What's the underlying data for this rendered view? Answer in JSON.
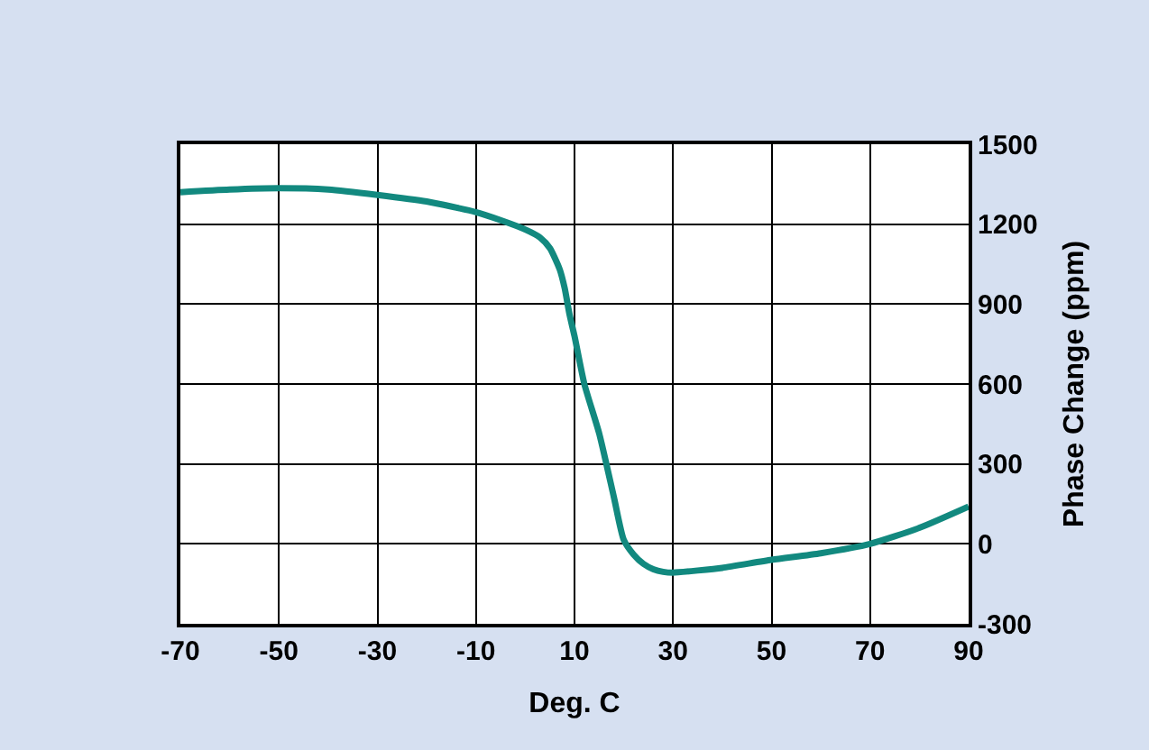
{
  "chart_data": {
    "type": "line",
    "xlabel": "Deg. C",
    "ylabel": "Phase Change (ppm)",
    "x": [
      -70,
      -60,
      -50,
      -40,
      -30,
      -20,
      -10,
      -5,
      0,
      3,
      5,
      7,
      8,
      9,
      10,
      12,
      15,
      18,
      20,
      22,
      24,
      26,
      28,
      30,
      35,
      40,
      50,
      60,
      70,
      80,
      90
    ],
    "series": [
      {
        "color": "#12897f",
        "values": [
          1320,
          1330,
          1335,
          1330,
          1310,
          1285,
          1245,
          1215,
          1180,
          1150,
          1110,
          1030,
          960,
          860,
          780,
          600,
          415,
          175,
          15,
          -40,
          -75,
          -95,
          -105,
          -108,
          -100,
          -90,
          -60,
          -35,
          0,
          60,
          140
        ]
      }
    ],
    "xlim": [
      -70,
      90
    ],
    "xticks": [
      -70,
      -50,
      -30,
      -10,
      10,
      30,
      50,
      70,
      90
    ],
    "ylim": [
      -300,
      1500
    ],
    "yticks": [
      -300,
      0,
      300,
      600,
      900,
      1200,
      1500
    ],
    "grid": true,
    "marker": "none",
    "line_style": "solid"
  }
}
